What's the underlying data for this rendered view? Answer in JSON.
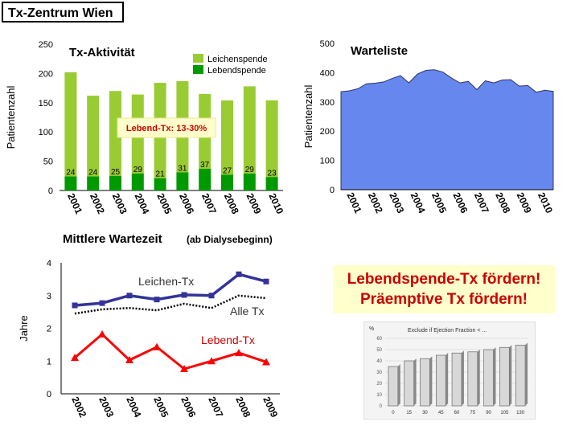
{
  "page_title": "Tx-Zentrum Wien",
  "promo": {
    "line1": "Lebendspende-Tx fördern!",
    "line2": "Präemptive Tx fördern!",
    "color": "#cc0000",
    "background": "#ffffcc"
  },
  "chart_data": [
    {
      "type": "bar",
      "title": "Tx-Aktivität",
      "ylabel": "Patientenzahl",
      "ylim": [
        0,
        250
      ],
      "yticks": [
        0,
        50,
        100,
        150,
        200,
        250
      ],
      "categories": [
        "2001",
        "2002",
        "2003",
        "2004",
        "2005",
        "2006",
        "2007",
        "2008",
        "2009",
        "2010"
      ],
      "series": [
        {
          "name": "Leichenspende",
          "color": "#99cc33",
          "values": [
            178,
            138,
            145,
            135,
            163,
            156,
            128,
            127,
            149,
            131
          ]
        },
        {
          "name": "Lebendspende",
          "color": "#009900",
          "values": [
            24,
            24,
            25,
            29,
            21,
            31,
            37,
            27,
            29,
            23
          ]
        }
      ],
      "data_labels": [
        "24",
        "24",
        "25",
        "29",
        "21",
        "31",
        "37",
        "27",
        "29",
        "23"
      ],
      "annotation": "Lebend-Tx: 13-30%"
    },
    {
      "type": "area",
      "title": "Warteliste",
      "ylabel": "Patientenzahl",
      "ylim": [
        0,
        500
      ],
      "yticks": [
        0,
        100,
        200,
        300,
        400,
        500
      ],
      "categories": [
        "2001",
        "2002",
        "2003",
        "2004",
        "2005",
        "2006",
        "2007",
        "2008",
        "2009",
        "2010"
      ],
      "color": "#6688ee",
      "x": [
        2000.0,
        2000.4,
        2000.8,
        2001.2,
        2001.6,
        2002.0,
        2002.4,
        2002.8,
        2003.2,
        2003.6,
        2004.0,
        2004.4,
        2004.8,
        2005.2,
        2005.6,
        2006.0,
        2006.4,
        2006.8,
        2007.2,
        2007.6,
        2008.0,
        2008.4,
        2008.8,
        2009.2,
        2009.6,
        2010.0
      ],
      "values": [
        335,
        338,
        345,
        362,
        364,
        368,
        380,
        390,
        365,
        395,
        408,
        410,
        402,
        382,
        365,
        370,
        342,
        372,
        365,
        375,
        376,
        354,
        356,
        333,
        340,
        336
      ]
    },
    {
      "type": "line",
      "title": "Mittlere Wartezeit",
      "subtitle": "(ab Dialysebeginn)",
      "ylabel": "Jahre",
      "ylim": [
        0,
        4
      ],
      "yticks": [
        0,
        1,
        2,
        3,
        4
      ],
      "categories": [
        "2002",
        "2003",
        "2004",
        "2005",
        "2006",
        "2007",
        "2008",
        "2009"
      ],
      "series": [
        {
          "name": "Leichen-Tx",
          "color": "#333399",
          "values": [
            2.7,
            2.77,
            3.0,
            2.88,
            3.02,
            3.0,
            3.65,
            3.43
          ]
        },
        {
          "name": "Alle Tx",
          "color": "#000000",
          "values": [
            2.45,
            2.58,
            2.62,
            2.55,
            2.75,
            2.62,
            3.0,
            2.92
          ]
        },
        {
          "name": "Lebend-Tx",
          "color": "#ff0000",
          "values": [
            1.1,
            1.82,
            1.03,
            1.43,
            0.76,
            1.0,
            1.25,
            0.97
          ]
        }
      ]
    },
    {
      "type": "bar",
      "title": "Exclude if Ejection Fraction < ...",
      "ylabel": "%",
      "ylim": [
        0,
        60
      ],
      "yticks": [
        0,
        10,
        20,
        30,
        40,
        50,
        60
      ],
      "categories": [
        "0",
        "15",
        "30",
        "45",
        "60",
        "75",
        "90",
        "105",
        "130"
      ],
      "values": [
        35,
        40,
        42,
        45,
        47,
        48,
        50,
        52,
        54
      ]
    }
  ]
}
